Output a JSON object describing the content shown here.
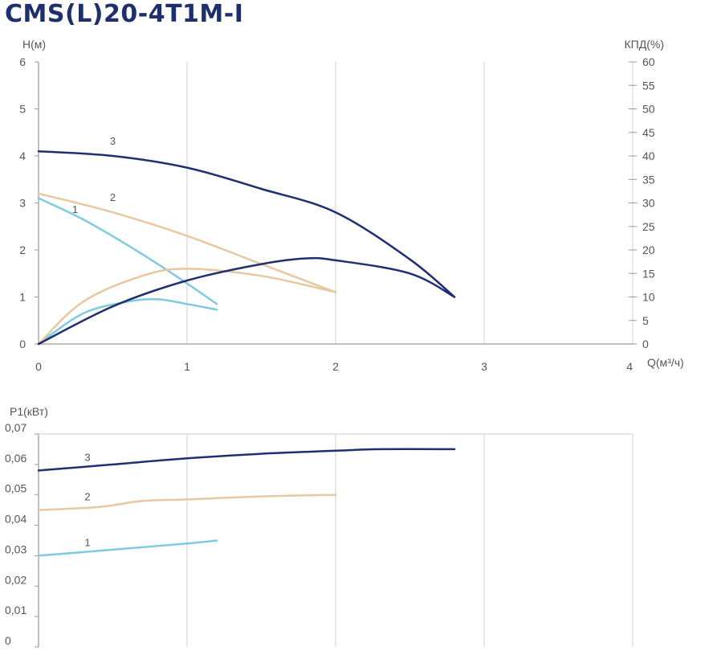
{
  "title": "CMS(L)20-4T1M-I",
  "colors": {
    "curve1": "#7ecbdf",
    "curve2": "#e8c8a0",
    "curve3": "#1f2f72",
    "grid": "#d8d8d8",
    "axis": "#9a9a9a",
    "text": "#555555"
  },
  "chart_data": [
    {
      "type": "line",
      "title": "",
      "xlabel": "Q(м³/ч)",
      "ylabel": "H(м)",
      "y2label": "КПД(%)",
      "xlim": [
        0,
        4
      ],
      "ylim": [
        0,
        6
      ],
      "y2lim": [
        0,
        60
      ],
      "xticks": [
        "0",
        "1",
        "2",
        "3",
        "4"
      ],
      "yticks": [
        "0",
        "1",
        "2",
        "3",
        "4",
        "5",
        "6"
      ],
      "y2ticks": [
        "0",
        "5",
        "10",
        "15",
        "20",
        "25",
        "30",
        "35",
        "40",
        "45",
        "50",
        "55",
        "60"
      ],
      "grid": true,
      "series": [
        {
          "name": "1",
          "kind": "head",
          "axis": "left",
          "color_key": "curve1",
          "x": [
            0,
            0.3,
            0.6,
            0.9,
            1.2
          ],
          "y": [
            3.1,
            2.65,
            2.1,
            1.5,
            0.85
          ]
        },
        {
          "name": "2",
          "kind": "head",
          "axis": "left",
          "color_key": "curve2",
          "x": [
            0,
            0.5,
            1.0,
            1.5,
            2.0
          ],
          "y": [
            3.2,
            2.8,
            2.3,
            1.7,
            1.1
          ]
        },
        {
          "name": "3",
          "kind": "head",
          "axis": "left",
          "color_key": "curve3",
          "x": [
            0,
            0.5,
            1.0,
            1.5,
            2.0,
            2.5,
            2.8
          ],
          "y": [
            4.1,
            4.0,
            3.75,
            3.3,
            2.8,
            1.8,
            1.0
          ]
        },
        {
          "name": "",
          "kind": "efficiency",
          "axis": "right",
          "color_key": "curve1",
          "x": [
            0,
            0.3,
            0.6,
            0.8,
            1.0,
            1.2
          ],
          "y": [
            0,
            6.5,
            9.0,
            9.5,
            8.5,
            7.3
          ]
        },
        {
          "name": "",
          "kind": "efficiency",
          "axis": "right",
          "color_key": "curve2",
          "x": [
            0,
            0.3,
            0.7,
            1.0,
            1.5,
            2.0
          ],
          "y": [
            0,
            9.0,
            14.5,
            16.0,
            14.5,
            11.0
          ]
        },
        {
          "name": "",
          "kind": "efficiency",
          "axis": "right",
          "color_key": "curve3",
          "x": [
            0,
            0.5,
            1.0,
            1.5,
            1.8,
            2.0,
            2.5,
            2.8
          ],
          "y": [
            0,
            8.0,
            13.5,
            17.0,
            18.2,
            17.8,
            15.0,
            10.0
          ]
        }
      ]
    },
    {
      "type": "line",
      "title": "",
      "xlabel": "",
      "ylabel": "P1(кВт)",
      "xlim": [
        0,
        4
      ],
      "ylim": [
        0,
        0.07
      ],
      "yticks": [
        "0",
        "0,01",
        "0,02",
        "0,03",
        "0,04",
        "0,05",
        "0,06",
        "0,07"
      ],
      "grid": true,
      "series": [
        {
          "name": "1",
          "color_key": "curve1",
          "x": [
            0,
            0.5,
            1.0,
            1.2
          ],
          "y": [
            0.03,
            0.032,
            0.034,
            0.035
          ]
        },
        {
          "name": "2",
          "color_key": "curve2",
          "x": [
            0,
            0.4,
            0.7,
            1.0,
            1.5,
            2.0
          ],
          "y": [
            0.045,
            0.046,
            0.048,
            0.0485,
            0.0495,
            0.05
          ]
        },
        {
          "name": "3",
          "color_key": "curve3",
          "x": [
            0,
            0.5,
            1.0,
            1.5,
            2.0,
            2.3,
            2.8
          ],
          "y": [
            0.058,
            0.06,
            0.062,
            0.0635,
            0.0645,
            0.065,
            0.065
          ]
        }
      ]
    }
  ]
}
